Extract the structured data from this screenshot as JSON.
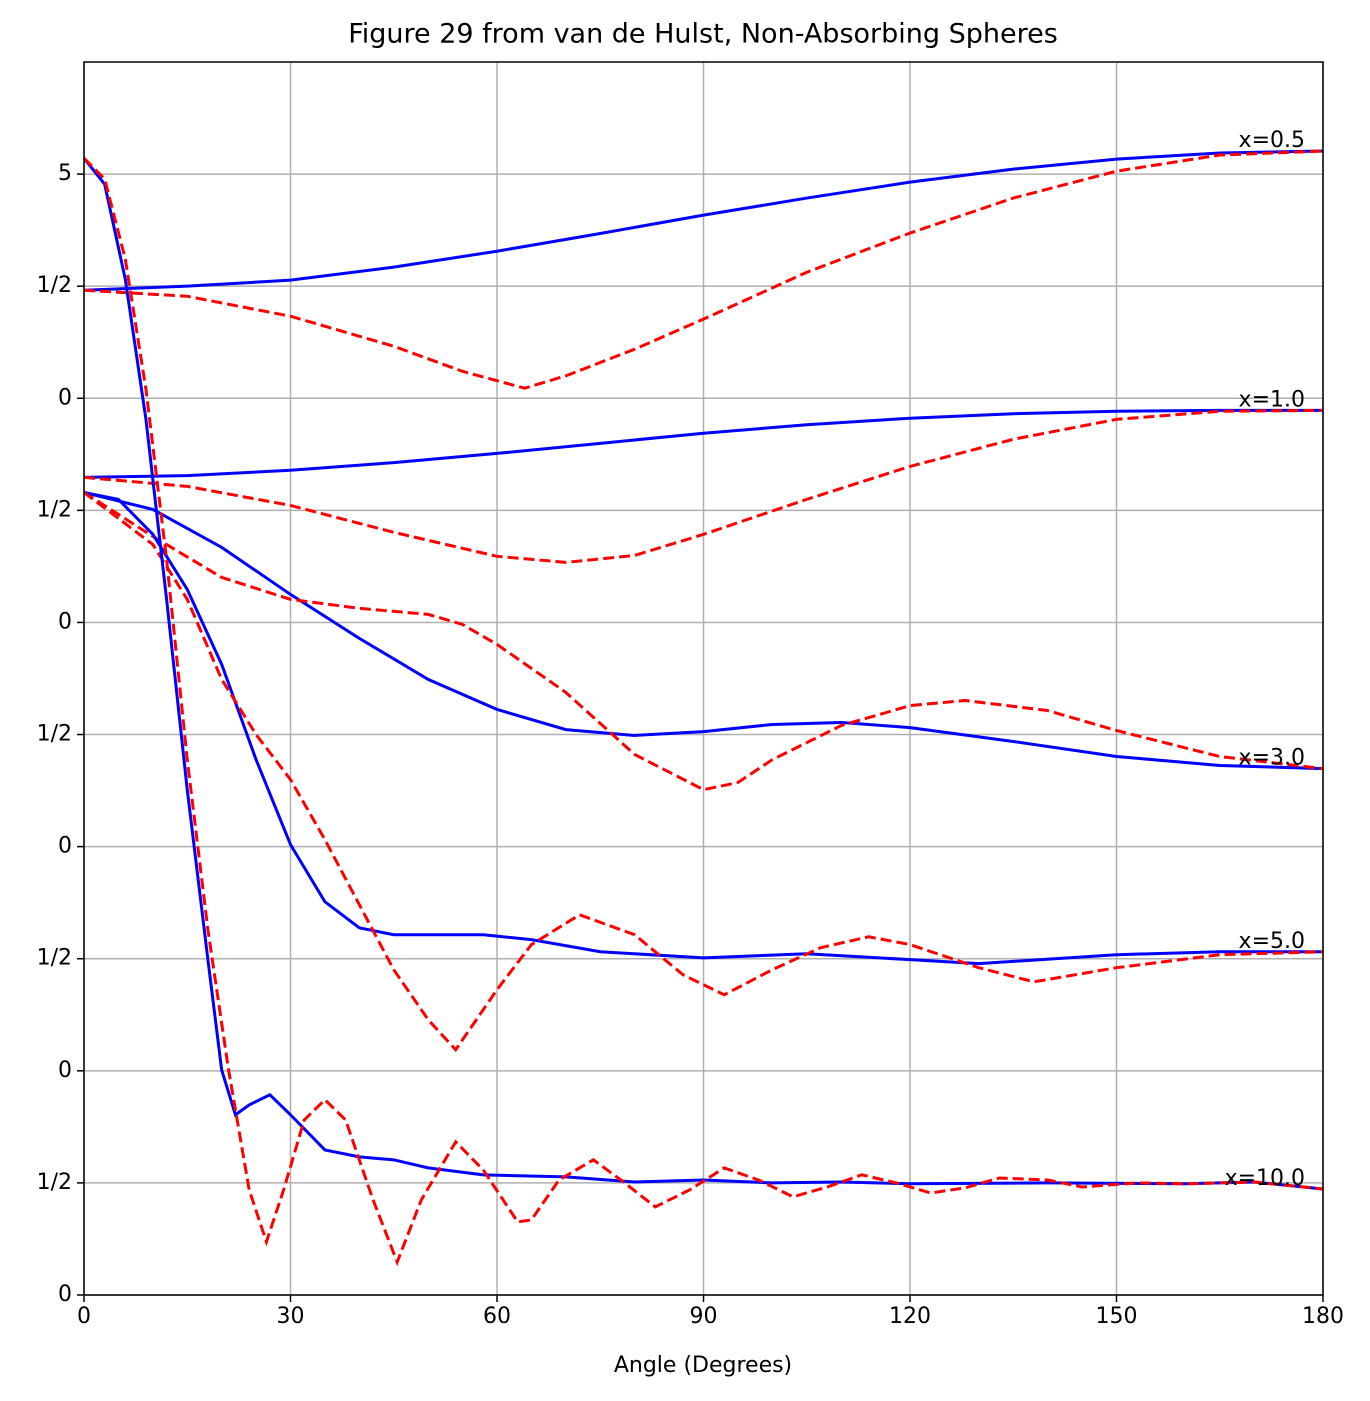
{
  "chart_data": {
    "type": "line",
    "title": "Figure 29 from van de Hulst, Non-Absorbing Spheres",
    "xlabel": "Angle (Degrees)",
    "xlim": [
      0,
      180
    ],
    "xticks": [
      0,
      30,
      60,
      90,
      120,
      150,
      180
    ],
    "ylim": [
      0,
      5.5
    ],
    "yticks": [
      0,
      {
        "value": 0.5,
        "label": "1/2"
      },
      {
        "value": 1,
        "label": "0"
      },
      {
        "value": 1.5,
        "label": "1/2"
      },
      {
        "value": 2,
        "label": "0"
      },
      {
        "value": 2.5,
        "label": "1/2"
      },
      {
        "value": 3,
        "label": "0"
      },
      {
        "value": 3.5,
        "label": "1/2"
      },
      {
        "value": 4,
        "label": "0"
      },
      {
        "value": 4.5,
        "label": "1/2"
      },
      5
    ],
    "grid": true,
    "series": [
      {
        "color": "#0000ff",
        "linestyle": "solid",
        "x": [
          0,
          15,
          30,
          45,
          60,
          75,
          90,
          105,
          120,
          135,
          150,
          165,
          180
        ],
        "values": [
          4.482,
          4.5,
          4.527,
          4.585,
          4.656,
          4.735,
          4.817,
          4.893,
          4.964,
          5.022,
          5.067,
          5.094,
          5.103
        ]
      },
      {
        "color": "#ff0000",
        "linestyle": "dashed",
        "x": [
          0,
          15,
          30,
          45,
          55,
          64,
          70,
          80,
          90,
          105,
          120,
          135,
          150,
          165,
          180
        ],
        "values": [
          4.482,
          4.455,
          4.366,
          4.232,
          4.12,
          4.045,
          4.1,
          4.219,
          4.353,
          4.562,
          4.737,
          4.893,
          5.013,
          5.085,
          5.103
        ]
      },
      {
        "color": "#0000ff",
        "linestyle": "solid",
        "x": [
          0,
          15,
          30,
          45,
          60,
          75,
          90,
          105,
          120,
          135,
          150,
          165,
          180
        ],
        "values": [
          3.647,
          3.655,
          3.679,
          3.713,
          3.754,
          3.799,
          3.844,
          3.882,
          3.911,
          3.931,
          3.942,
          3.946,
          3.946
        ]
      },
      {
        "color": "#ff0000",
        "linestyle": "dashed",
        "x": [
          0,
          15,
          30,
          45,
          60,
          70,
          80,
          90,
          105,
          120,
          135,
          150,
          165,
          180
        ],
        "values": [
          3.647,
          3.607,
          3.522,
          3.402,
          3.295,
          3.268,
          3.299,
          3.393,
          3.549,
          3.696,
          3.817,
          3.906,
          3.942,
          3.946
        ]
      },
      {
        "color": "#0000ff",
        "linestyle": "solid",
        "x": [
          0,
          10,
          20,
          30,
          40,
          50,
          60,
          70,
          80,
          90,
          100,
          110,
          120,
          135,
          150,
          165,
          180
        ],
        "values": [
          3.58,
          3.504,
          3.335,
          3.125,
          2.929,
          2.746,
          2.612,
          2.522,
          2.496,
          2.513,
          2.545,
          2.554,
          2.531,
          2.469,
          2.402,
          2.362,
          2.348
        ]
      },
      {
        "color": "#ff0000",
        "linestyle": "dashed",
        "x": [
          0,
          10,
          20,
          30,
          40,
          50,
          55,
          60,
          70,
          80,
          90,
          95,
          100,
          110,
          120,
          128,
          140,
          150,
          165,
          180
        ],
        "values": [
          3.58,
          3.384,
          3.201,
          3.103,
          3.063,
          3.036,
          2.991,
          2.902,
          2.688,
          2.411,
          2.254,
          2.286,
          2.388,
          2.54,
          2.629,
          2.652,
          2.607,
          2.518,
          2.402,
          2.348
        ]
      },
      {
        "color": "#0000ff",
        "linestyle": "solid",
        "x": [
          0,
          5,
          10,
          15,
          20,
          25,
          30,
          35,
          40,
          45,
          58,
          65,
          75,
          90,
          105,
          120,
          130,
          150,
          165,
          180
        ],
        "values": [
          3.58,
          3.549,
          3.393,
          3.147,
          2.813,
          2.388,
          2.009,
          1.754,
          1.638,
          1.607,
          1.607,
          1.585,
          1.531,
          1.504,
          1.522,
          1.496,
          1.478,
          1.518,
          1.531,
          1.531
        ]
      },
      {
        "color": "#ff0000",
        "linestyle": "dashed",
        "x": [
          0,
          10,
          15,
          20,
          25,
          30,
          35,
          40,
          45,
          50,
          54,
          60,
          65,
          72,
          80,
          87,
          93,
          100,
          107,
          114,
          120,
          130,
          138,
          150,
          165,
          180
        ],
        "values": [
          3.58,
          3.348,
          3.103,
          2.746,
          2.5,
          2.299,
          2.031,
          1.741,
          1.451,
          1.228,
          1.094,
          1.362,
          1.563,
          1.696,
          1.607,
          1.429,
          1.339,
          1.451,
          1.549,
          1.598,
          1.563,
          1.46,
          1.397,
          1.46,
          1.518,
          1.531
        ]
      },
      {
        "color": "#0000ff",
        "linestyle": "solid",
        "x": [
          0,
          3,
          6,
          9,
          12,
          15,
          18,
          20,
          22,
          24,
          27,
          30,
          35,
          40,
          45,
          50,
          58,
          70,
          80,
          90,
          100,
          110,
          120,
          140,
          160,
          170,
          180
        ],
        "values": [
          5.071,
          4.955,
          4.531,
          3.906,
          3.103,
          2.254,
          1.496,
          1.004,
          0.804,
          0.848,
          0.893,
          0.804,
          0.647,
          0.616,
          0.603,
          0.567,
          0.536,
          0.527,
          0.504,
          0.513,
          0.5,
          0.504,
          0.496,
          0.5,
          0.496,
          0.504,
          0.473
        ]
      },
      {
        "color": "#ff0000",
        "linestyle": "dashed",
        "x": [
          0,
          3,
          6,
          9,
          12,
          15,
          18,
          21,
          24,
          26.5,
          29,
          32,
          35,
          38,
          42,
          45.5,
          49,
          54,
          58,
          63,
          65,
          69,
          74,
          78,
          83,
          88,
          93,
          98,
          103,
          108,
          113,
          118,
          123,
          128,
          133,
          140,
          145,
          153,
          160,
          170,
          180
        ],
        "values": [
          5.071,
          4.978,
          4.621,
          4.04,
          3.281,
          2.388,
          1.629,
          1.004,
          0.469,
          0.237,
          0.469,
          0.781,
          0.871,
          0.781,
          0.424,
          0.147,
          0.424,
          0.683,
          0.558,
          0.326,
          0.335,
          0.513,
          0.603,
          0.513,
          0.393,
          0.469,
          0.567,
          0.513,
          0.438,
          0.482,
          0.536,
          0.5,
          0.455,
          0.478,
          0.522,
          0.513,
          0.482,
          0.5,
          0.496,
          0.504,
          0.473
        ]
      }
    ],
    "annotations": [
      {
        "text": "x=0.5",
        "x": 180,
        "y": 5.103
      },
      {
        "text": "x=1.0",
        "x": 180,
        "y": 3.946
      },
      {
        "text": "x=3.0",
        "x": 180,
        "y": 2.348
      },
      {
        "text": "x=5.0",
        "x": 180,
        "y": 1.531
      },
      {
        "text": "x=10.0",
        "x": 180,
        "y": 0.473
      }
    ]
  }
}
